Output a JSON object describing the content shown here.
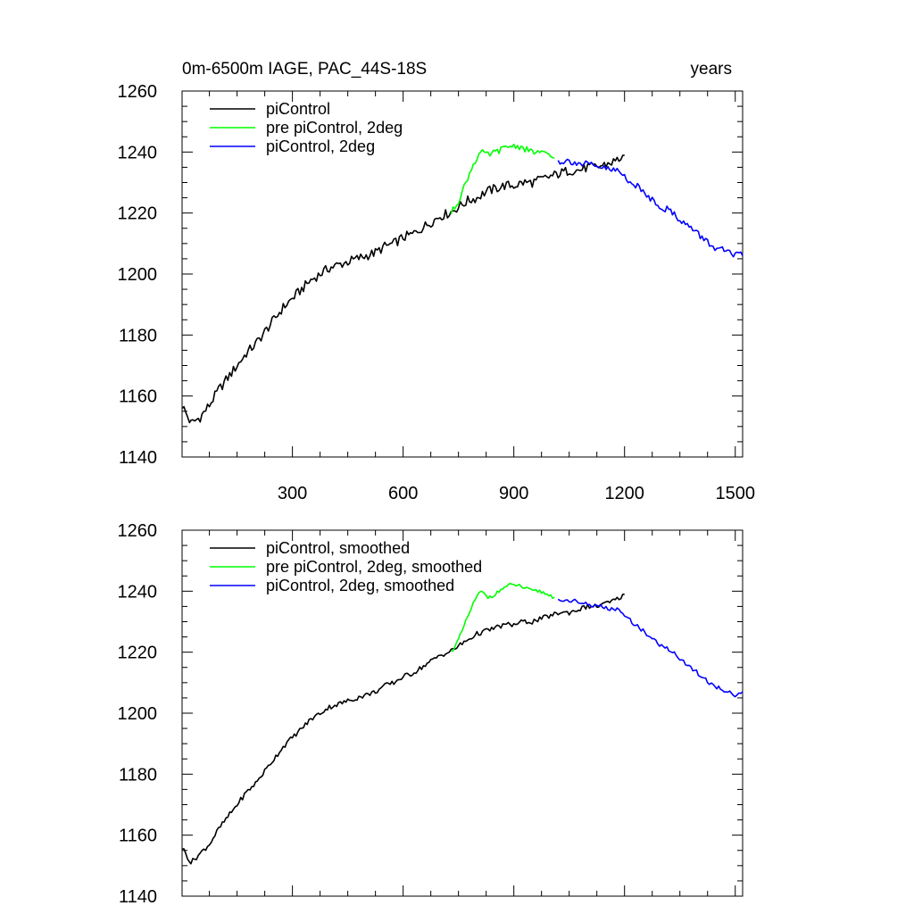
{
  "header": {
    "left": "0m-6500m IAGE, PAC_44S-18S",
    "right": "years"
  },
  "chart_data": [
    {
      "type": "line",
      "title": "0m-6500m IAGE, PAC_44S-18S",
      "xlabel": "",
      "ylabel": "",
      "units_label": "years",
      "xlim": [
        1,
        1520
      ],
      "ylim": [
        1140,
        1260
      ],
      "xticks": [
        300,
        600,
        900,
        1200,
        1500
      ],
      "yticks": [
        1140,
        1160,
        1180,
        1200,
        1220,
        1240,
        1260
      ],
      "grid": false,
      "legend_position": "top-left",
      "series": [
        {
          "name": "piControl",
          "color": "#000000",
          "x": [
            1,
            25,
            50,
            75,
            100,
            125,
            150,
            175,
            200,
            225,
            250,
            275,
            300,
            325,
            350,
            375,
            400,
            425,
            450,
            475,
            500,
            525,
            550,
            575,
            600,
            625,
            650,
            675,
            700,
            725,
            750,
            775,
            800,
            825,
            850,
            875,
            900,
            925,
            950,
            975,
            1000,
            1025,
            1050,
            1075,
            1100,
            1125,
            1150,
            1175,
            1200
          ],
          "values": [
            1157,
            1151,
            1153,
            1157,
            1162,
            1166,
            1170,
            1174,
            1177,
            1181,
            1185,
            1189,
            1192,
            1195,
            1198,
            1200,
            1202,
            1203,
            1204,
            1205,
            1206,
            1207,
            1209,
            1210,
            1212,
            1213,
            1215,
            1217,
            1219,
            1220,
            1222,
            1224,
            1225,
            1227,
            1228,
            1229,
            1229,
            1230,
            1230,
            1231,
            1232,
            1233,
            1234,
            1234,
            1235,
            1235,
            1236,
            1237,
            1239
          ]
        },
        {
          "name": "pre piControl, 2deg",
          "color": "#00ff00",
          "x": [
            730,
            750,
            770,
            790,
            810,
            830,
            850,
            870,
            890,
            910,
            930,
            950,
            970,
            990,
            1010
          ],
          "values": [
            1220,
            1224,
            1230,
            1236,
            1240,
            1239,
            1240,
            1241,
            1242,
            1242,
            1241,
            1240,
            1240,
            1239,
            1238
          ]
        },
        {
          "name": "piControl, 2deg",
          "color": "#0000ff",
          "x": [
            1020,
            1040,
            1060,
            1080,
            1100,
            1120,
            1140,
            1160,
            1180,
            1200,
            1220,
            1240,
            1260,
            1280,
            1300,
            1320,
            1340,
            1360,
            1380,
            1400,
            1420,
            1440,
            1460,
            1480,
            1500,
            1520
          ],
          "values": [
            1237,
            1237,
            1237,
            1236,
            1236,
            1235,
            1235,
            1234,
            1234,
            1232,
            1230,
            1228,
            1226,
            1224,
            1222,
            1221,
            1219,
            1217,
            1215,
            1213,
            1211,
            1209,
            1208,
            1207,
            1206,
            1206
          ]
        }
      ]
    },
    {
      "type": "line",
      "title": "",
      "xlabel": "",
      "ylabel": "",
      "xlim": [
        1,
        1520
      ],
      "ylim": [
        1140,
        1260
      ],
      "xticks": [
        300,
        600,
        900,
        1200,
        1500
      ],
      "yticks": [
        1140,
        1160,
        1180,
        1200,
        1220,
        1240,
        1260
      ],
      "show_xtick_labels": false,
      "grid": false,
      "legend_position": "top-left",
      "series": [
        {
          "name": "piControl, smoothed",
          "color": "#000000",
          "x": [
            1,
            25,
            50,
            75,
            100,
            125,
            150,
            175,
            200,
            225,
            250,
            275,
            300,
            325,
            350,
            375,
            400,
            425,
            450,
            475,
            500,
            525,
            550,
            575,
            600,
            625,
            650,
            675,
            700,
            725,
            750,
            775,
            800,
            825,
            850,
            875,
            900,
            925,
            950,
            975,
            1000,
            1025,
            1050,
            1075,
            1100,
            1125,
            1150,
            1175,
            1200
          ],
          "values": [
            1156,
            1151,
            1154,
            1157,
            1162,
            1166,
            1170,
            1174,
            1177,
            1181,
            1185,
            1189,
            1192,
            1195,
            1198,
            1200,
            1202,
            1203,
            1204,
            1205,
            1206,
            1207,
            1209,
            1210,
            1212,
            1213,
            1215,
            1217,
            1219,
            1220,
            1222,
            1224,
            1226,
            1227,
            1228,
            1229,
            1229,
            1230,
            1230,
            1231,
            1232,
            1233,
            1233,
            1234,
            1235,
            1235,
            1236,
            1237,
            1239
          ]
        },
        {
          "name": "pre piControl, 2deg, smoothed",
          "color": "#00ff00",
          "x": [
            730,
            750,
            770,
            790,
            810,
            830,
            850,
            870,
            890,
            910,
            930,
            950,
            970,
            990,
            1010
          ],
          "values": [
            1220,
            1224,
            1230,
            1236,
            1240,
            1238,
            1239,
            1241,
            1242,
            1242,
            1241,
            1240,
            1240,
            1239,
            1238
          ]
        },
        {
          "name": "piControl, 2deg, smoothed",
          "color": "#0000ff",
          "x": [
            1020,
            1040,
            1060,
            1080,
            1100,
            1120,
            1140,
            1160,
            1180,
            1200,
            1220,
            1240,
            1260,
            1280,
            1300,
            1320,
            1340,
            1360,
            1380,
            1400,
            1420,
            1440,
            1460,
            1480,
            1500,
            1520
          ],
          "values": [
            1237,
            1237,
            1237,
            1236,
            1236,
            1235,
            1235,
            1234,
            1234,
            1232,
            1230,
            1228,
            1226,
            1224,
            1222,
            1221,
            1219,
            1217,
            1215,
            1213,
            1211,
            1209,
            1208,
            1207,
            1206,
            1207
          ]
        }
      ]
    }
  ]
}
